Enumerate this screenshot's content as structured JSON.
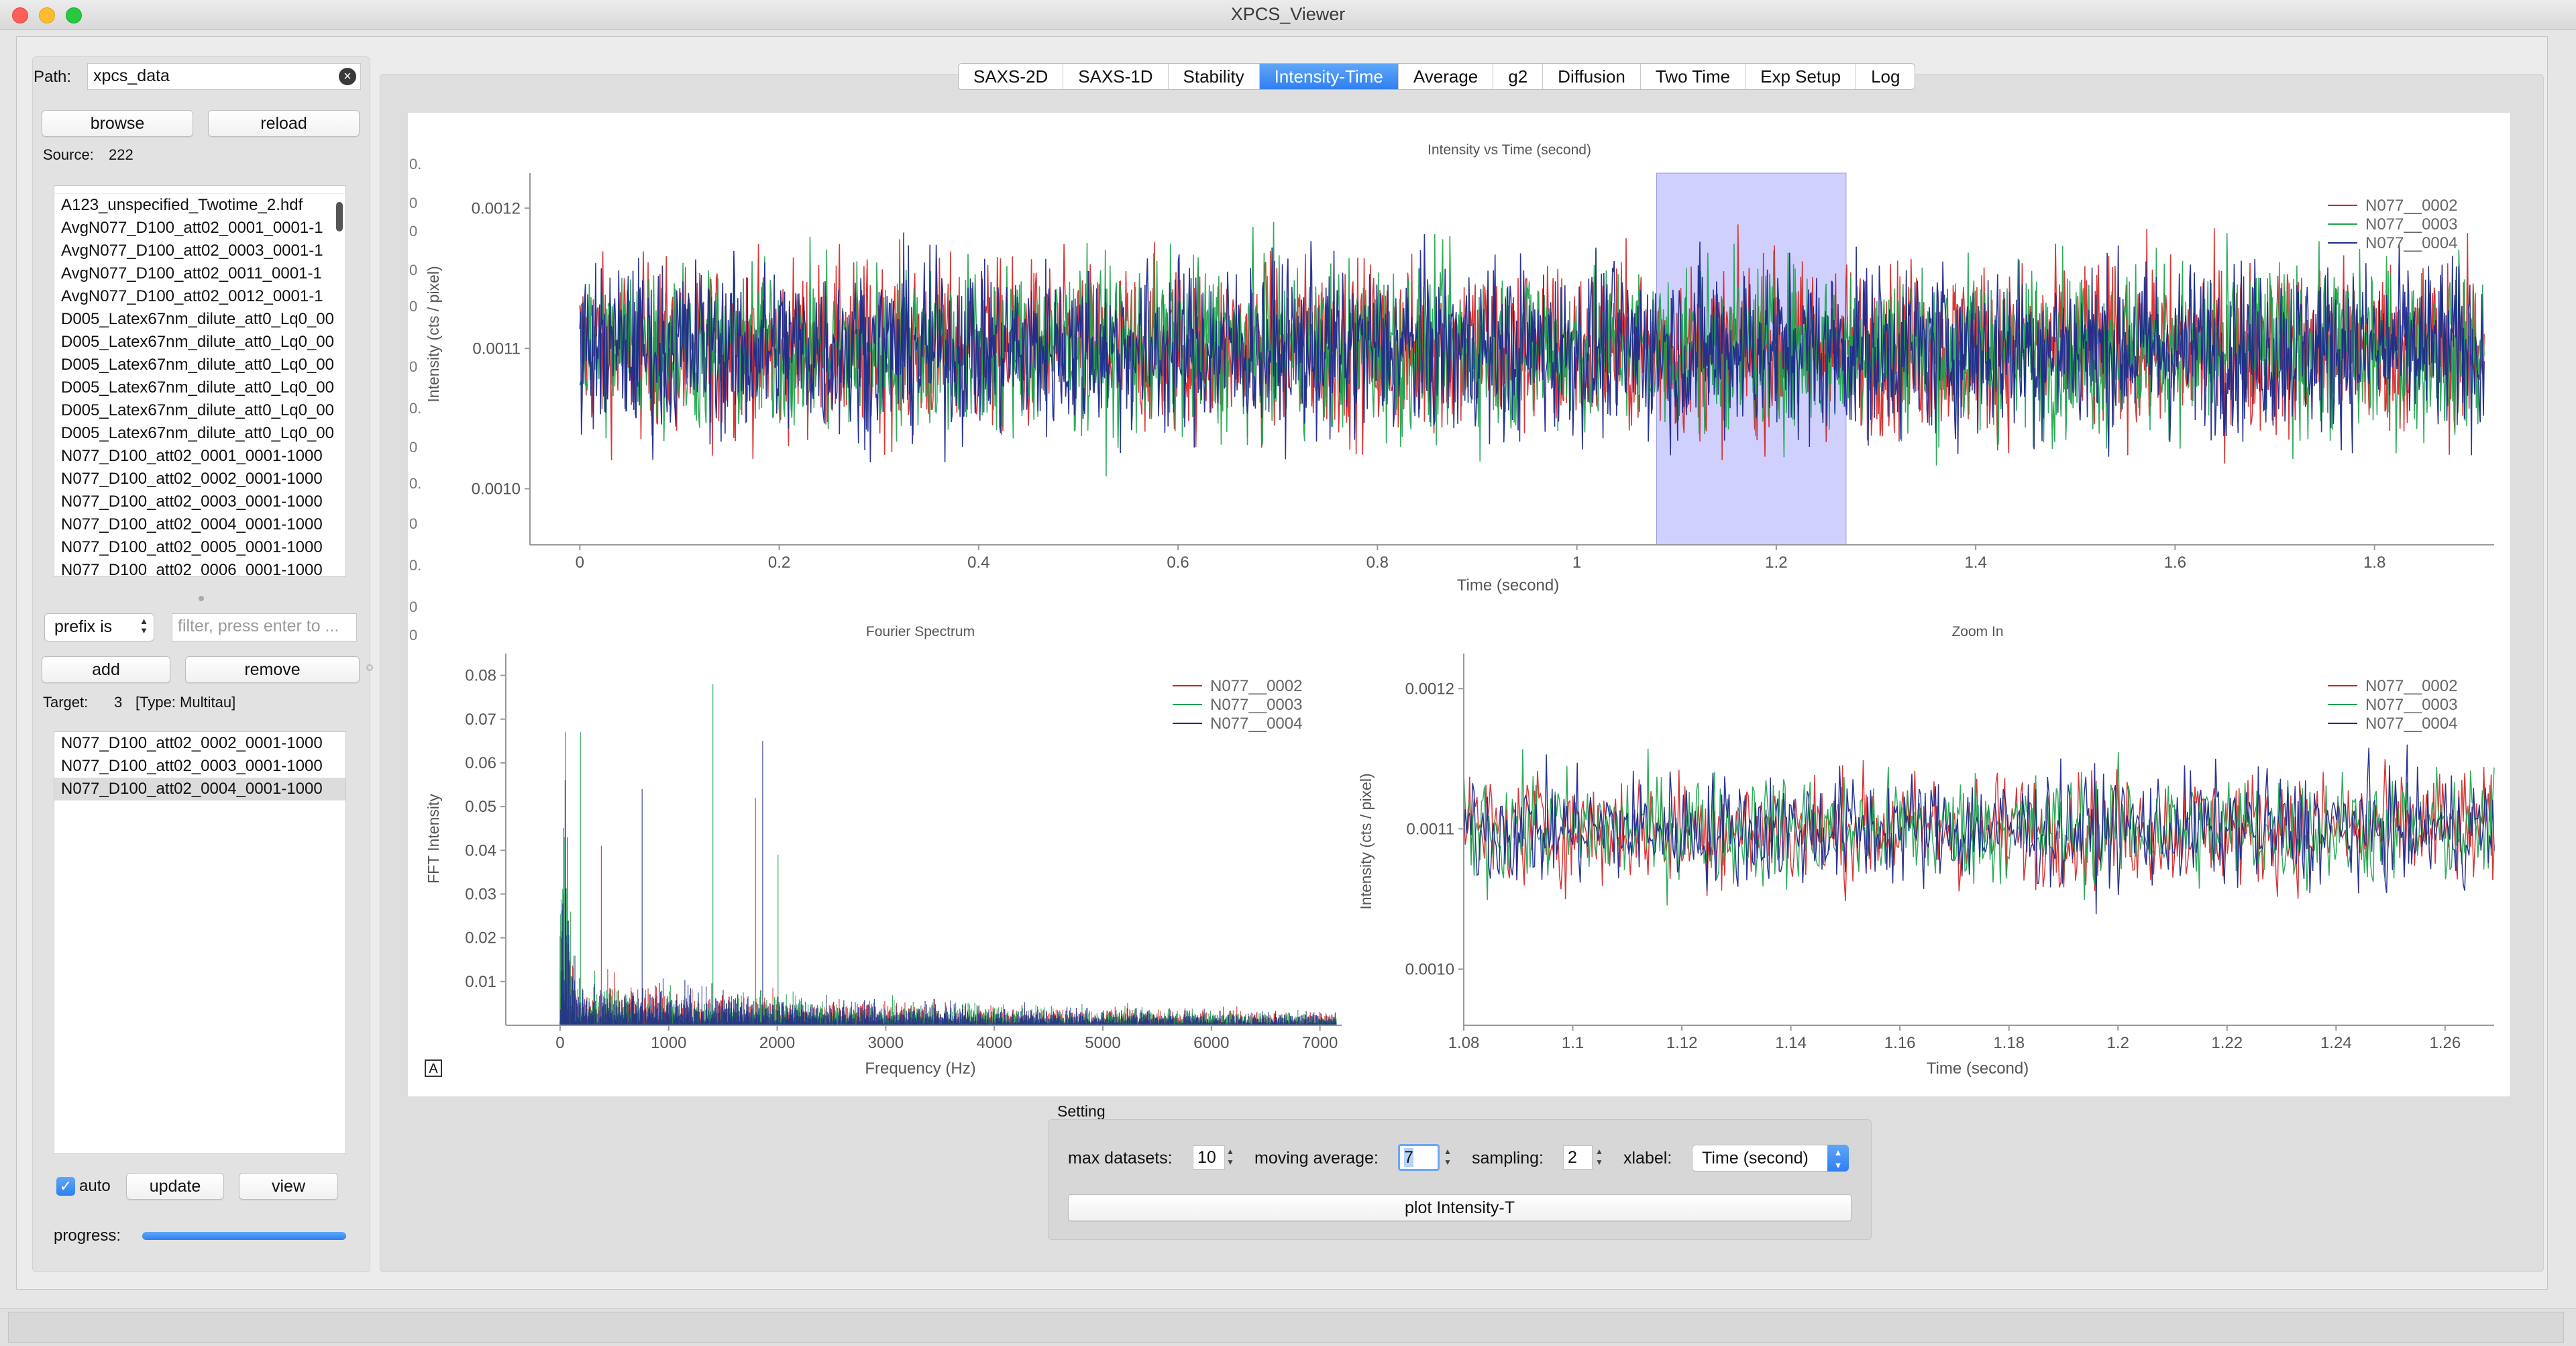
{
  "window": {
    "title": "XPCS_Viewer"
  },
  "left": {
    "path_label": "Path:",
    "path_value": "xpcs_data",
    "browse_label": "browse",
    "reload_label": "reload",
    "source_label": "Source:",
    "source_count": "222",
    "source_files": [
      "A123_unspecified_Twotime_2.hdf",
      "AvgN077_D100_att02_0001_0001-1",
      "AvgN077_D100_att02_0003_0001-1",
      "AvgN077_D100_att02_0011_0001-1",
      "AvgN077_D100_att02_0012_0001-1",
      "D005_Latex67nm_dilute_att0_Lq0_00",
      "D005_Latex67nm_dilute_att0_Lq0_00",
      "D005_Latex67nm_dilute_att0_Lq0_00",
      "D005_Latex67nm_dilute_att0_Lq0_00",
      "D005_Latex67nm_dilute_att0_Lq0_00",
      "D005_Latex67nm_dilute_att0_Lq0_00",
      "N077_D100_att02_0001_0001-1000",
      "N077_D100_att02_0002_0001-1000",
      "N077_D100_att02_0003_0001-1000",
      "N077_D100_att02_0004_0001-1000",
      "N077_D100_att02_0005_0001-1000",
      "N077_D100_att02_0006_0001-1000"
    ],
    "filter_mode": "prefix is",
    "filter_placeholder": "filter, press enter to ...",
    "add_label": "add",
    "remove_label": "remove",
    "target_label": "Target:",
    "target_count": "3",
    "target_type": "[Type: Multitau]",
    "target_files": [
      "N077_D100_att02_0002_0001-1000",
      "N077_D100_att02_0003_0001-1000",
      "N077_D100_att02_0004_0001-1000"
    ],
    "auto_label": "auto",
    "auto_checked": true,
    "update_label": "update",
    "view_label": "view",
    "progress_label": "progress:",
    "progress_value": 1.0
  },
  "tabs": [
    "SAXS-2D",
    "SAXS-1D",
    "Stability",
    "Intensity-Time",
    "Average",
    "g2",
    "Diffusion",
    "Two Time",
    "Exp Setup",
    "Log"
  ],
  "active_tab": "Intensity-Time",
  "plot_corner_button": "A",
  "series_colors": {
    "N077__0002": "#d62020",
    "N077__0003": "#1aa34a",
    "N077__0004": "#1f2a8c"
  },
  "region_color": "#c8c8ff",
  "chart_data": [
    {
      "type": "line",
      "title": "Intensity vs Time (second)",
      "xlabel": "Time (second)",
      "ylabel": "Intensity (cts / pixel)",
      "xlim": [
        -0.05,
        1.92
      ],
      "ylim": [
        0.00096,
        0.001225
      ],
      "xticks": [
        "0",
        "0.2",
        "0.4",
        "0.6",
        "0.8",
        "1",
        "1.2",
        "1.4",
        "1.6",
        "1.8"
      ],
      "xtick_values": [
        0,
        0.2,
        0.4,
        0.6,
        0.8,
        1.0,
        1.2,
        1.4,
        1.6,
        1.8
      ],
      "yticks": [
        "0.0010",
        "0.0011",
        "0.0012"
      ],
      "ytick_values": [
        0.001,
        0.0011,
        0.0012
      ],
      "x_range": [
        0,
        1.91
      ],
      "mean": 0.0011,
      "spread": 6e-05,
      "selected_region": [
        1.08,
        1.27
      ],
      "legend": "top-right",
      "series": [
        {
          "name": "N077__0002"
        },
        {
          "name": "N077__0003"
        },
        {
          "name": "N077__0004"
        }
      ]
    },
    {
      "type": "line",
      "title": "Fourier Spectrum",
      "xlabel": "Frequency (Hz)",
      "ylabel": "FFT Intensity",
      "xlim": [
        -500,
        7200
      ],
      "ylim": [
        0,
        0.085
      ],
      "xticks": [
        "0",
        "1000",
        "2000",
        "3000",
        "4000",
        "5000",
        "6000",
        "7000"
      ],
      "xtick_values": [
        0,
        1000,
        2000,
        3000,
        4000,
        5000,
        6000,
        7000
      ],
      "yticks": [
        "0.01",
        "0.02",
        "0.03",
        "0.04",
        "0.05",
        "0.06",
        "0.07",
        "0.08"
      ],
      "ytick_values": [
        0.01,
        0.02,
        0.03,
        0.04,
        0.05,
        0.06,
        0.07,
        0.08
      ],
      "x_range": [
        0,
        7150
      ],
      "peak_freqs": [
        30,
        50,
        180,
        380,
        740,
        1400,
        1800,
        1850,
        2000
      ],
      "legend": "top-right",
      "series": [
        {
          "name": "N077__0002"
        },
        {
          "name": "N077__0003"
        },
        {
          "name": "N077__0004"
        }
      ]
    },
    {
      "type": "line",
      "title": "Zoom In",
      "xlabel": "Time (second)",
      "ylabel": "Intensity (cts / pixel)",
      "xlim": [
        1.08,
        1.269
      ],
      "ylim": [
        0.00096,
        0.001225
      ],
      "xticks": [
        "1.08",
        "1.1",
        "1.12",
        "1.14",
        "1.16",
        "1.18",
        "1.2",
        "1.22",
        "1.24",
        "1.26"
      ],
      "xtick_values": [
        1.08,
        1.1,
        1.12,
        1.14,
        1.16,
        1.18,
        1.2,
        1.22,
        1.24,
        1.26
      ],
      "yticks": [
        "0.0010",
        "0.0011",
        "0.0012"
      ],
      "ytick_values": [
        0.001,
        0.0011,
        0.0012
      ],
      "x_range": [
        1.08,
        1.269
      ],
      "mean": 0.0011,
      "spread": 4e-05,
      "legend": "top-right",
      "series": [
        {
          "name": "N077__0002"
        },
        {
          "name": "N077__0003"
        },
        {
          "name": "N077__0004"
        }
      ]
    }
  ],
  "settings": {
    "group_label": "Setting",
    "max_datasets_label": "max datasets:",
    "max_datasets_value": "10",
    "moving_average_label": "moving average:",
    "moving_average_value": "7",
    "sampling_label": "sampling:",
    "sampling_value": "2",
    "xlabel_label": "xlabel:",
    "xlabel_value": "Time (second)",
    "plot_button_label": "plot Intensity-T"
  }
}
